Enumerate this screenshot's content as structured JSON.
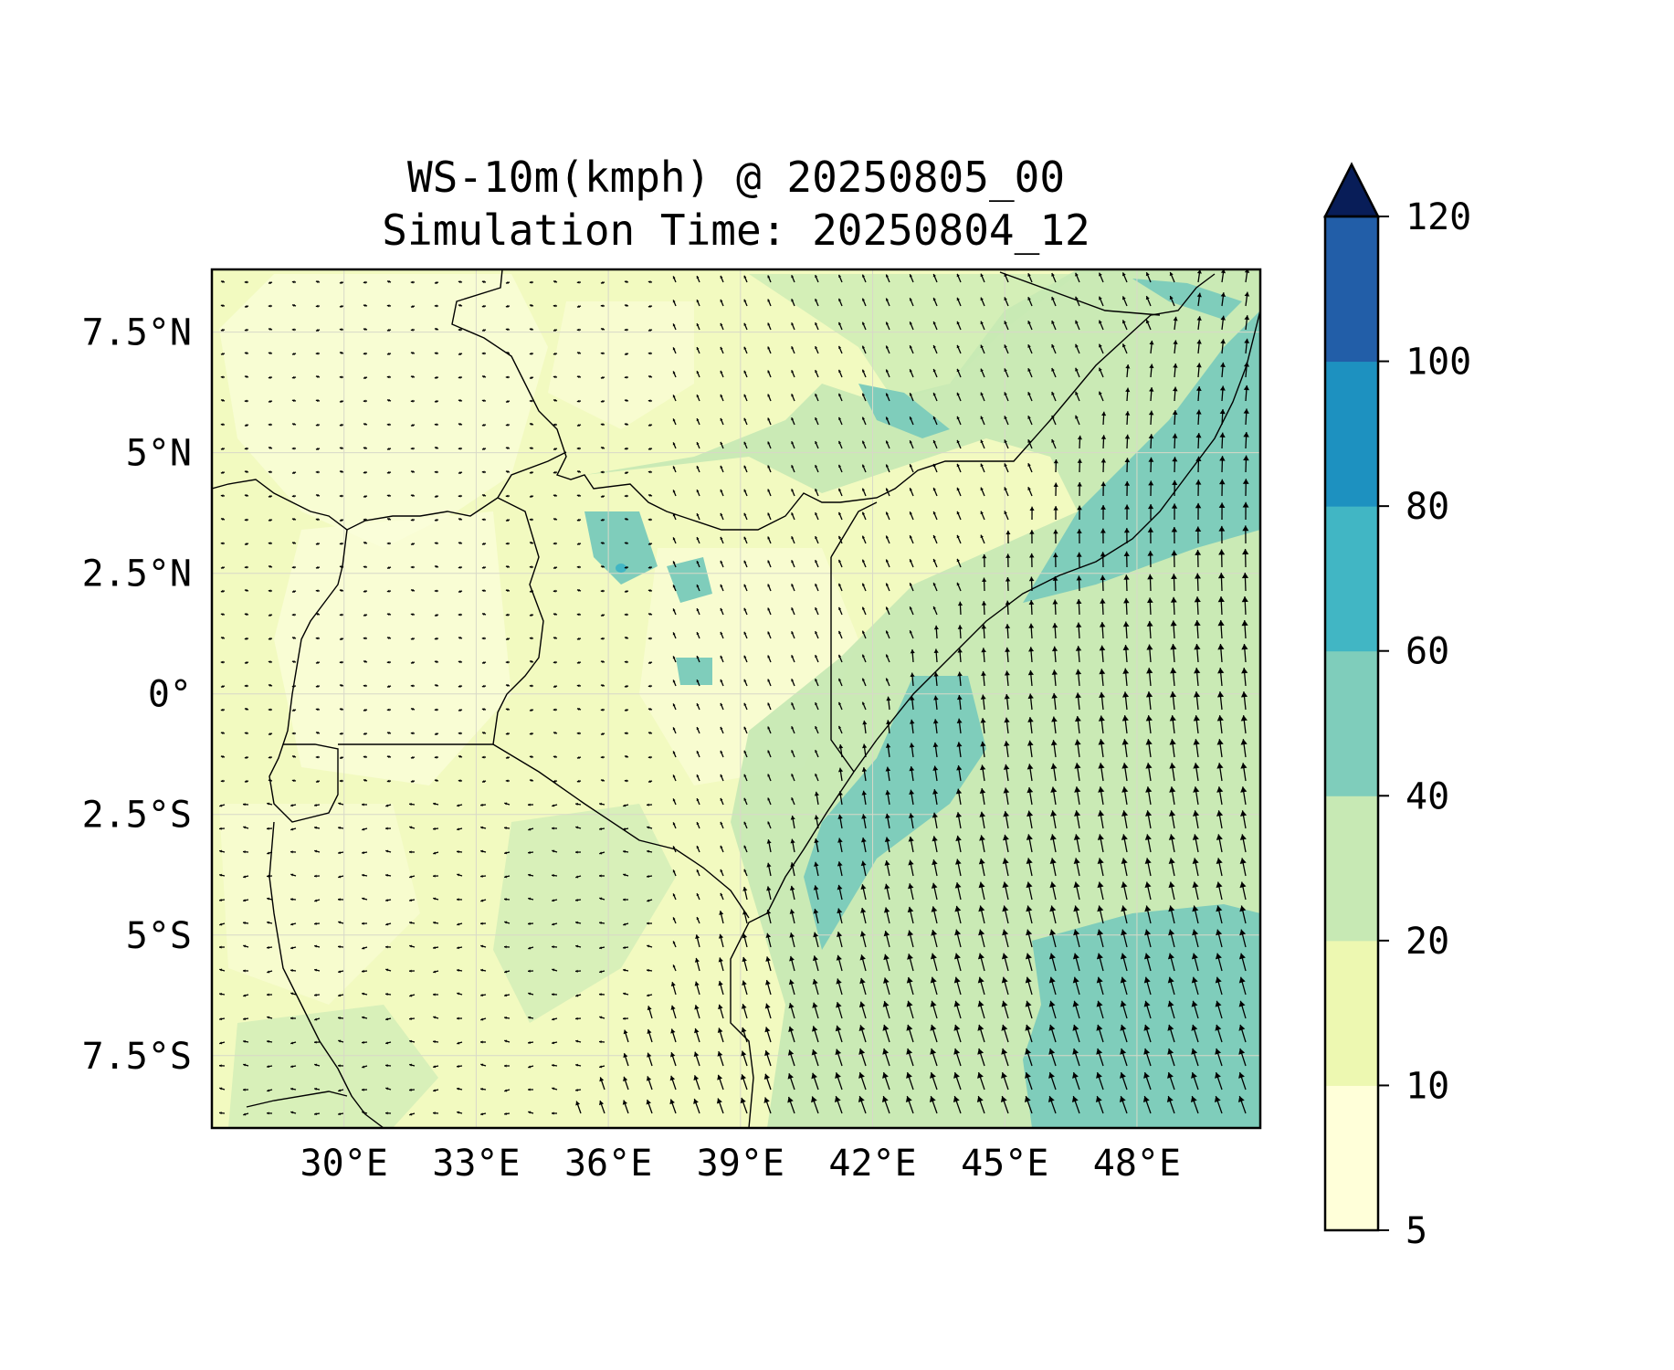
{
  "title": {
    "line1": "WS-10m(kmph) @ 20250805_00",
    "line2": "Simulation Time: 20250804_12"
  },
  "map": {
    "lon_range": [
      27,
      50.8
    ],
    "lat_range": [
      -9,
      8.8
    ],
    "x_ticks": [
      {
        "value": 30,
        "label": "30°E"
      },
      {
        "value": 33,
        "label": "33°E"
      },
      {
        "value": 36,
        "label": "36°E"
      },
      {
        "value": 39,
        "label": "39°E"
      },
      {
        "value": 42,
        "label": "42°E"
      },
      {
        "value": 45,
        "label": "45°E"
      },
      {
        "value": 48,
        "label": "48°E"
      }
    ],
    "y_ticks": [
      {
        "value": 7.5,
        "label": "7.5°N"
      },
      {
        "value": 5,
        "label": "5°N"
      },
      {
        "value": 2.5,
        "label": "2.5°N"
      },
      {
        "value": 0,
        "label": "0°"
      },
      {
        "value": -2.5,
        "label": "2.5°S"
      },
      {
        "value": -5,
        "label": "5°S"
      },
      {
        "value": -7.5,
        "label": "7.5°S"
      }
    ],
    "grid": true,
    "field": "wind speed 10 m (kmph), filled contours with wind vectors"
  },
  "colorbar": {
    "levels": [
      5,
      10,
      20,
      40,
      60,
      80,
      100,
      120
    ],
    "colors": [
      "#ffffd9",
      "#edf8b1",
      "#c7e9b4",
      "#7fcdbb",
      "#41b6c4",
      "#1d91c0",
      "#225ea8",
      "#0c2c84"
    ],
    "extend_color": "#081d58",
    "labels": [
      "5",
      "10",
      "20",
      "40",
      "60",
      "80",
      "100",
      "120"
    ]
  }
}
